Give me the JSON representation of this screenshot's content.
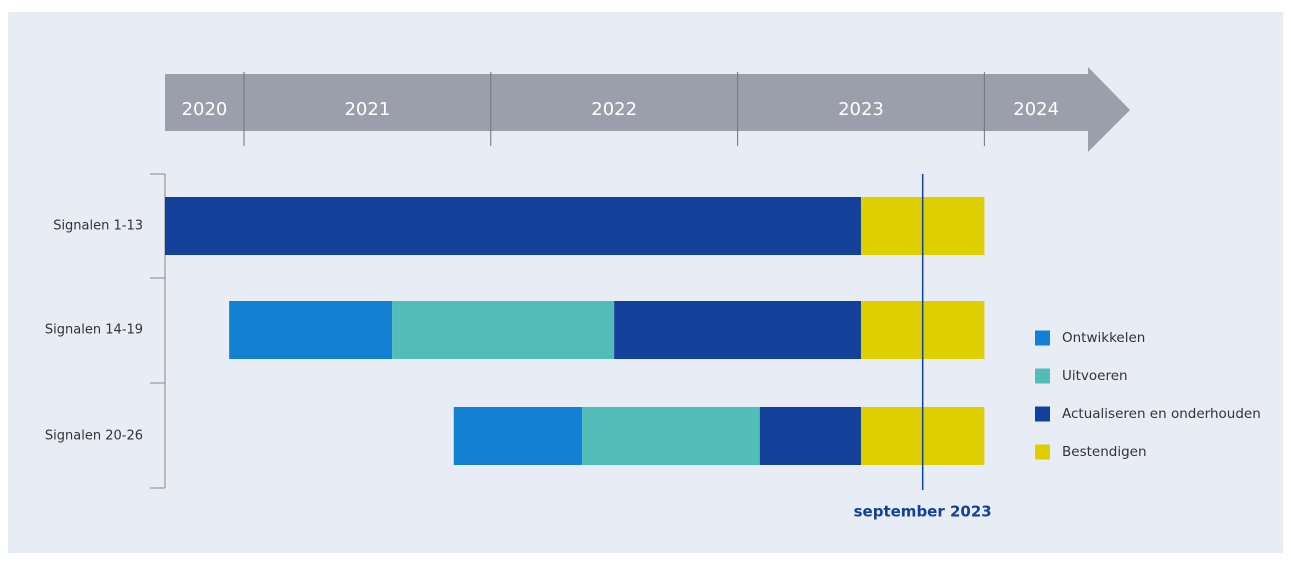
{
  "chart_data": {
    "type": "gantt",
    "categories": [
      "Signalen 1-13",
      "Signalen 14-19",
      "Signalen 20-26"
    ],
    "starts": [
      2020.68,
      2020.94,
      2021.85
    ],
    "series": [
      {
        "name": "Ontwikkelen",
        "color": "#1380d3",
        "values": [
          null,
          0.66,
          0.52
        ]
      },
      {
        "name": "Uitvoeren",
        "color": "#52bcb9",
        "values": [
          null,
          0.9,
          0.72
        ]
      },
      {
        "name": "Actualiseren en onderhouden",
        "color": "#13419a",
        "values": [
          2.82,
          1.0,
          0.41
        ]
      },
      {
        "name": "Bestendigen",
        "color": "#dfcf00",
        "values": [
          0.5,
          0.5,
          0.5
        ]
      }
    ],
    "xlim": [
      2020.68,
      2024.59
    ],
    "xticks": [
      2020,
      2021,
      2022,
      2023,
      2024
    ],
    "axis_color": "#9a9fab",
    "marker": {
      "label": "september 2023",
      "value": 2023.75,
      "color": "#13419a"
    }
  }
}
